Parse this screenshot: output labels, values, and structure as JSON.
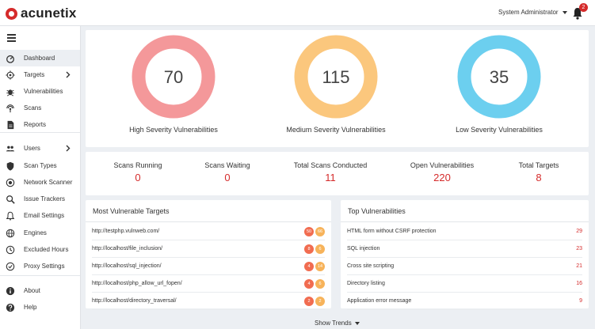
{
  "app": {
    "logo_text": "acunetix"
  },
  "header": {
    "user": "System Administrator",
    "notification_count": "2"
  },
  "sidebar": {
    "items": [
      {
        "label": "Dashboard",
        "icon": "dashboard-icon",
        "active": true,
        "chevron": false
      },
      {
        "label": "Targets",
        "icon": "target-icon",
        "active": false,
        "chevron": true
      },
      {
        "label": "Vulnerabilities",
        "icon": "bug-icon",
        "active": false,
        "chevron": false
      },
      {
        "label": "Scans",
        "icon": "radar-icon",
        "active": false,
        "chevron": false
      },
      {
        "label": "Reports",
        "icon": "report-icon",
        "active": false,
        "chevron": false
      },
      {
        "label": "Users",
        "icon": "users-icon",
        "active": false,
        "chevron": true
      },
      {
        "label": "Scan Types",
        "icon": "shield-icon",
        "active": false,
        "chevron": false
      },
      {
        "label": "Network Scanner",
        "icon": "network-icon",
        "active": false,
        "chevron": false
      },
      {
        "label": "Issue Trackers",
        "icon": "magnifier-icon",
        "active": false,
        "chevron": false
      },
      {
        "label": "Email Settings",
        "icon": "bell-icon",
        "active": false,
        "chevron": false
      },
      {
        "label": "Engines",
        "icon": "globe-icon",
        "active": false,
        "chevron": false
      },
      {
        "label": "Excluded Hours",
        "icon": "clock-icon",
        "active": false,
        "chevron": false
      },
      {
        "label": "Proxy Settings",
        "icon": "proxy-icon",
        "active": false,
        "chevron": false
      },
      {
        "label": "About",
        "icon": "info-icon",
        "active": false,
        "chevron": false
      },
      {
        "label": "Help",
        "icon": "help-icon",
        "active": false,
        "chevron": false
      }
    ]
  },
  "severity": [
    {
      "value": "70",
      "label": "High Severity Vulnerabilities",
      "color": "#f4989a"
    },
    {
      "value": "115",
      "label": "Medium Severity Vulnerabilities",
      "color": "#fbc77d"
    },
    {
      "value": "35",
      "label": "Low Severity Vulnerabilities",
      "color": "#6ccfef"
    }
  ],
  "stats": [
    {
      "label": "Scans Running",
      "value": "0"
    },
    {
      "label": "Scans Waiting",
      "value": "0"
    },
    {
      "label": "Total Scans Conducted",
      "value": "11"
    },
    {
      "label": "Open Vulnerabilities",
      "value": "220"
    },
    {
      "label": "Total Targets",
      "value": "8"
    }
  ],
  "most_vulnerable": {
    "title": "Most Vulnerable Targets",
    "rows": [
      {
        "name": "http://testphp.vulnweb.com/",
        "high": "50",
        "medium": "66"
      },
      {
        "name": "http://localhost/file_inclusion/",
        "high": "8",
        "medium": "6"
      },
      {
        "name": "http://localhost/sql_injection/",
        "high": "4",
        "medium": "14"
      },
      {
        "name": "http://localhost/php_allow_url_fopen/",
        "high": "4",
        "medium": "6"
      },
      {
        "name": "http://localhost/directory_traversal/",
        "high": "2",
        "medium": "2"
      }
    ]
  },
  "top_vulns": {
    "title": "Top Vulnerabilities",
    "rows": [
      {
        "name": "HTML form without CSRF protection",
        "count": "29"
      },
      {
        "name": "SQL injection",
        "count": "23"
      },
      {
        "name": "Cross site scripting",
        "count": "21"
      },
      {
        "name": "Directory listing",
        "count": "16"
      },
      {
        "name": "Application error message",
        "count": "9"
      }
    ]
  },
  "footer": {
    "show_trends": "Show Trends"
  },
  "colors": {
    "accent": "#d52b2b",
    "high": "#f16c50",
    "medium": "#f7b35a"
  }
}
